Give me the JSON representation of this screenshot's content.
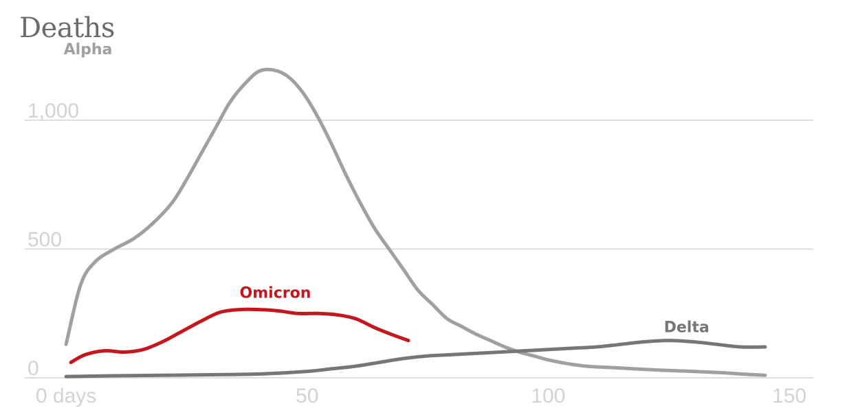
{
  "chart_data": {
    "type": "line",
    "title": "Deaths",
    "xlabel": "",
    "ylabel": "",
    "xlim": [
      -8,
      155
    ],
    "ylim": [
      0,
      1200
    ],
    "grid": true,
    "y_ticks": [
      {
        "value": 0,
        "label": "0"
      },
      {
        "value": 500,
        "label": "500"
      },
      {
        "value": 1000,
        "label": "1,000"
      }
    ],
    "x_ticks": [
      {
        "value": 0,
        "label": "0 days"
      },
      {
        "value": 50,
        "label": "50"
      },
      {
        "value": 100,
        "label": "100"
      },
      {
        "value": 150,
        "label": "150"
      }
    ],
    "series": [
      {
        "name": "Alpha",
        "color": "#a0a0a0",
        "label_at": [
          -0.5,
          1256
        ],
        "points": [
          [
            0,
            130
          ],
          [
            3,
            360
          ],
          [
            6,
            450
          ],
          [
            10,
            500
          ],
          [
            14,
            540
          ],
          [
            18,
            600
          ],
          [
            22,
            680
          ],
          [
            25,
            770
          ],
          [
            28,
            870
          ],
          [
            31,
            970
          ],
          [
            34,
            1070
          ],
          [
            37,
            1140
          ],
          [
            40,
            1190
          ],
          [
            43,
            1195
          ],
          [
            46,
            1170
          ],
          [
            49,
            1110
          ],
          [
            52,
            1020
          ],
          [
            55,
            910
          ],
          [
            58,
            790
          ],
          [
            61,
            680
          ],
          [
            64,
            580
          ],
          [
            67,
            500
          ],
          [
            70,
            420
          ],
          [
            73,
            340
          ],
          [
            76,
            285
          ],
          [
            79,
            230
          ],
          [
            82,
            200
          ],
          [
            85,
            170
          ],
          [
            88,
            145
          ],
          [
            91,
            120
          ],
          [
            94,
            100
          ],
          [
            97,
            85
          ],
          [
            100,
            70
          ],
          [
            104,
            55
          ],
          [
            108,
            45
          ],
          [
            113,
            40
          ],
          [
            118,
            35
          ],
          [
            123,
            30
          ],
          [
            130,
            25
          ],
          [
            136,
            20
          ],
          [
            140,
            15
          ],
          [
            145,
            10
          ]
        ]
      },
      {
        "name": "Delta",
        "color": "#767676",
        "label_at": [
          124,
          177
        ],
        "points": [
          [
            0,
            5
          ],
          [
            10,
            8
          ],
          [
            20,
            10
          ],
          [
            30,
            12
          ],
          [
            40,
            15
          ],
          [
            50,
            25
          ],
          [
            55,
            35
          ],
          [
            60,
            45
          ],
          [
            65,
            60
          ],
          [
            70,
            75
          ],
          [
            75,
            85
          ],
          [
            80,
            90
          ],
          [
            85,
            95
          ],
          [
            90,
            100
          ],
          [
            95,
            105
          ],
          [
            100,
            110
          ],
          [
            105,
            115
          ],
          [
            110,
            120
          ],
          [
            115,
            130
          ],
          [
            120,
            140
          ],
          [
            125,
            145
          ],
          [
            130,
            140
          ],
          [
            135,
            130
          ],
          [
            140,
            120
          ],
          [
            145,
            120
          ]
        ]
      },
      {
        "name": "Omicron",
        "color": "#c4161c",
        "label_at": [
          36,
          311
        ],
        "points": [
          [
            1,
            60
          ],
          [
            4,
            90
          ],
          [
            8,
            105
          ],
          [
            12,
            100
          ],
          [
            16,
            110
          ],
          [
            20,
            140
          ],
          [
            24,
            180
          ],
          [
            28,
            220
          ],
          [
            32,
            255
          ],
          [
            36,
            265
          ],
          [
            40,
            265
          ],
          [
            44,
            260
          ],
          [
            48,
            250
          ],
          [
            52,
            250
          ],
          [
            56,
            245
          ],
          [
            60,
            230
          ],
          [
            64,
            195
          ],
          [
            68,
            165
          ],
          [
            71,
            145
          ]
        ]
      }
    ]
  }
}
